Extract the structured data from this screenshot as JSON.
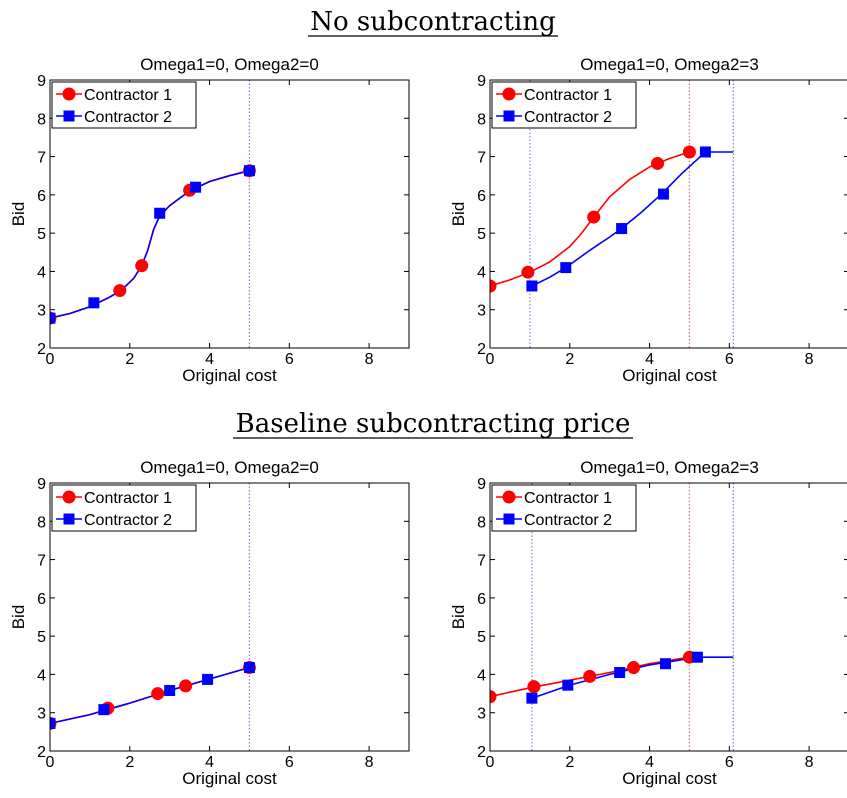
{
  "sections": [
    {
      "title": "No subcontracting"
    },
    {
      "title": "Baseline subcontracting price"
    }
  ],
  "colors": {
    "contractor1": "#ff0000",
    "contractor2": "#0000ff",
    "vline_red": "#c48080",
    "vline_blue": "#8080c8"
  },
  "chart_data": [
    {
      "type": "line",
      "title": "Omega1=0, Omega2=0",
      "xlabel": "Original cost",
      "ylabel": "Bid",
      "xlim": [
        0,
        9
      ],
      "ylim": [
        2,
        9
      ],
      "xticks": [
        0,
        2,
        4,
        6,
        8
      ],
      "yticks": [
        2,
        3,
        4,
        5,
        6,
        7,
        8,
        9
      ],
      "legend_position": "top-left",
      "vlines": [
        {
          "x": 5.0,
          "color": "blue"
        }
      ],
      "series": [
        {
          "name": "Contractor 1",
          "color": "red",
          "marker": "circle",
          "curve": [
            [
              0,
              2.78
            ],
            [
              0.5,
              2.9
            ],
            [
              1.0,
              3.08
            ],
            [
              1.5,
              3.33
            ],
            [
              1.8,
              3.52
            ],
            [
              2.1,
              3.82
            ],
            [
              2.3,
              4.15
            ],
            [
              2.45,
              4.55
            ],
            [
              2.6,
              5.1
            ],
            [
              2.75,
              5.45
            ],
            [
              3.0,
              5.72
            ],
            [
              3.5,
              6.1
            ],
            [
              4.0,
              6.35
            ],
            [
              4.5,
              6.5
            ],
            [
              5.0,
              6.63
            ]
          ],
          "markers": [
            [
              0,
              2.78
            ],
            [
              1.75,
              3.5
            ],
            [
              2.3,
              4.15
            ],
            [
              3.5,
              6.12
            ],
            [
              5.0,
              6.63
            ]
          ]
        },
        {
          "name": "Contractor 2",
          "color": "blue",
          "marker": "square",
          "curve": [
            [
              0,
              2.78
            ],
            [
              0.5,
              2.9
            ],
            [
              1.0,
              3.08
            ],
            [
              1.5,
              3.33
            ],
            [
              1.8,
              3.52
            ],
            [
              2.1,
              3.82
            ],
            [
              2.3,
              4.15
            ],
            [
              2.45,
              4.55
            ],
            [
              2.6,
              5.1
            ],
            [
              2.75,
              5.45
            ],
            [
              3.0,
              5.72
            ],
            [
              3.5,
              6.1
            ],
            [
              4.0,
              6.35
            ],
            [
              4.5,
              6.5
            ],
            [
              5.0,
              6.63
            ]
          ],
          "markers": [
            [
              0,
              2.78
            ],
            [
              1.1,
              3.18
            ],
            [
              2.75,
              5.52
            ],
            [
              3.65,
              6.2
            ],
            [
              5.0,
              6.63
            ]
          ]
        }
      ]
    },
    {
      "type": "line",
      "title": "Omega1=0, Omega2=3",
      "xlabel": "Original cost",
      "ylabel": "Bid",
      "xlim": [
        0,
        9
      ],
      "ylim": [
        2,
        9
      ],
      "xticks": [
        0,
        2,
        4,
        6,
        8
      ],
      "yticks": [
        2,
        3,
        4,
        5,
        6,
        7,
        8,
        9
      ],
      "legend_position": "top-left",
      "vlines": [
        {
          "x": 1.0,
          "color": "blue"
        },
        {
          "x": 5.0,
          "color": "red"
        },
        {
          "x": 6.1,
          "color": "blue"
        }
      ],
      "series": [
        {
          "name": "Contractor 1",
          "color": "red",
          "marker": "circle",
          "curve": [
            [
              0,
              3.62
            ],
            [
              0.5,
              3.78
            ],
            [
              1.0,
              3.98
            ],
            [
              1.5,
              4.25
            ],
            [
              2.0,
              4.65
            ],
            [
              2.3,
              5.0
            ],
            [
              2.6,
              5.42
            ],
            [
              3.0,
              5.95
            ],
            [
              3.5,
              6.4
            ],
            [
              4.0,
              6.73
            ],
            [
              4.5,
              6.95
            ],
            [
              5.0,
              7.12
            ]
          ],
          "markers": [
            [
              0,
              3.62
            ],
            [
              0.95,
              3.98
            ],
            [
              2.6,
              5.42
            ],
            [
              4.2,
              6.82
            ],
            [
              5.0,
              7.12
            ]
          ]
        },
        {
          "name": "Contractor 2",
          "color": "blue",
          "marker": "square",
          "curve": [
            [
              1.05,
              3.62
            ],
            [
              1.5,
              3.85
            ],
            [
              1.9,
              4.1
            ],
            [
              2.5,
              4.55
            ],
            [
              3.0,
              4.9
            ],
            [
              3.3,
              5.12
            ],
            [
              3.8,
              5.55
            ],
            [
              4.3,
              6.02
            ],
            [
              4.8,
              6.55
            ],
            [
              5.4,
              7.12
            ],
            [
              6.1,
              7.12
            ]
          ],
          "markers": [
            [
              1.05,
              3.62
            ],
            [
              1.9,
              4.1
            ],
            [
              3.3,
              5.12
            ],
            [
              4.35,
              6.02
            ],
            [
              5.4,
              7.12
            ]
          ]
        }
      ]
    },
    {
      "type": "line",
      "title": "Omega1=0, Omega2=0",
      "xlabel": "Original cost",
      "ylabel": "Bid",
      "xlim": [
        0,
        9
      ],
      "ylim": [
        2,
        9
      ],
      "xticks": [
        0,
        2,
        4,
        6,
        8
      ],
      "yticks": [
        2,
        3,
        4,
        5,
        6,
        7,
        8,
        9
      ],
      "legend_position": "top-left",
      "vlines": [
        {
          "x": 5.0,
          "color": "blue"
        }
      ],
      "series": [
        {
          "name": "Contractor 1",
          "color": "red",
          "marker": "circle",
          "curve": [
            [
              0,
              2.72
            ],
            [
              1.0,
              2.95
            ],
            [
              2.0,
              3.25
            ],
            [
              3.0,
              3.58
            ],
            [
              4.0,
              3.88
            ],
            [
              5.0,
              4.18
            ]
          ],
          "markers": [
            [
              0,
              2.72
            ],
            [
              1.45,
              3.12
            ],
            [
              2.7,
              3.5
            ],
            [
              3.4,
              3.7
            ],
            [
              5.0,
              4.18
            ]
          ]
        },
        {
          "name": "Contractor 2",
          "color": "blue",
          "marker": "square",
          "curve": [
            [
              0,
              2.72
            ],
            [
              1.0,
              2.95
            ],
            [
              2.0,
              3.25
            ],
            [
              3.0,
              3.58
            ],
            [
              4.0,
              3.88
            ],
            [
              5.0,
              4.18
            ]
          ],
          "markers": [
            [
              0,
              2.72
            ],
            [
              1.35,
              3.08
            ],
            [
              3.0,
              3.58
            ],
            [
              3.95,
              3.87
            ],
            [
              5.0,
              4.18
            ]
          ]
        }
      ]
    },
    {
      "type": "line",
      "title": "Omega1=0, Omega2=3",
      "xlabel": "Original cost",
      "ylabel": "Bid",
      "xlim": [
        0,
        9
      ],
      "ylim": [
        2,
        9
      ],
      "xticks": [
        0,
        2,
        4,
        6,
        8
      ],
      "yticks": [
        2,
        3,
        4,
        5,
        6,
        7,
        8,
        9
      ],
      "legend_position": "top-left",
      "vlines": [
        {
          "x": 1.05,
          "color": "blue"
        },
        {
          "x": 5.0,
          "color": "red"
        },
        {
          "x": 6.1,
          "color": "blue"
        }
      ],
      "series": [
        {
          "name": "Contractor 1",
          "color": "red",
          "marker": "circle",
          "curve": [
            [
              0,
              3.42
            ],
            [
              1.0,
              3.65
            ],
            [
              2.0,
              3.85
            ],
            [
              3.0,
              4.05
            ],
            [
              4.0,
              4.28
            ],
            [
              5.0,
              4.45
            ]
          ],
          "markers": [
            [
              0,
              3.42
            ],
            [
              1.1,
              3.68
            ],
            [
              2.5,
              3.95
            ],
            [
              3.6,
              4.18
            ],
            [
              5.0,
              4.45
            ]
          ]
        },
        {
          "name": "Contractor 2",
          "color": "blue",
          "marker": "square",
          "curve": [
            [
              1.05,
              3.38
            ],
            [
              2.0,
              3.72
            ],
            [
              3.0,
              4.0
            ],
            [
              4.0,
              4.25
            ],
            [
              5.2,
              4.45
            ],
            [
              6.1,
              4.45
            ]
          ],
          "markers": [
            [
              1.05,
              3.38
            ],
            [
              1.95,
              3.72
            ],
            [
              3.25,
              4.05
            ],
            [
              4.4,
              4.28
            ],
            [
              5.2,
              4.45
            ]
          ]
        }
      ]
    }
  ]
}
